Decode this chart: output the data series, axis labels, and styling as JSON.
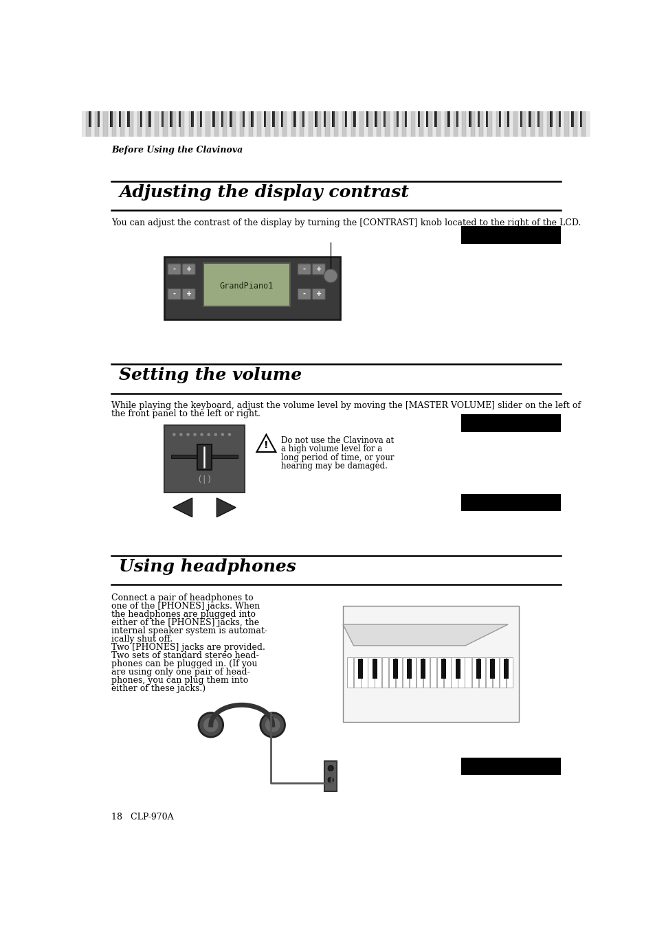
{
  "page_bg": "#ffffff",
  "header_text": "Before Using the Clavinova",
  "footer_text": "18   CLP-970A",
  "section1_title": "Adjusting the display contrast",
  "section1_body": "You can adjust the contrast of the display by turning the [CONTRAST] knob located to the right of the LCD.",
  "section2_title": "Setting the volume",
  "section2_body1": "While playing the keyboard, adjust the volume level by moving the [MASTER VOLUME] slider on the left of",
  "section2_body2": "the front panel to the left or right.",
  "section2_warning_lines": [
    "Do not use the Clavinova at",
    "a high volume level for a",
    "long period of time, or your",
    "hearing may be damaged."
  ],
  "section3_title": "Using headphones",
  "section3_body_lines": [
    "Connect a pair of headphones to",
    "one of the [PHONES] jacks. When",
    "the headphones are plugged into",
    "either of the [PHONES] jacks, the",
    "internal speaker system is automat-",
    "ically shut off.",
    "Two [PHONES] jacks are provided.",
    "Two sets of standard stereo head-",
    "phones can be plugged in. (If you",
    "are using only one pair of head-",
    "phones, you can plug them into",
    "either of these jacks.)"
  ],
  "stripe_light": "#e8e8e8",
  "stripe_dark": "#c8c8c8",
  "black_rect_color": "#000000",
  "dark_panel": "#3a3a3a",
  "lcd_bg": "#9aaa80",
  "btn_gray": "#7a7a7a",
  "slider_panel": "#505050",
  "slider_knob": "#2a2a2a",
  "section_line_color": "#000000",
  "section_title_size": 18,
  "body_size": 9,
  "header_size": 9,
  "footer_size": 9,
  "warning_size": 8.5
}
